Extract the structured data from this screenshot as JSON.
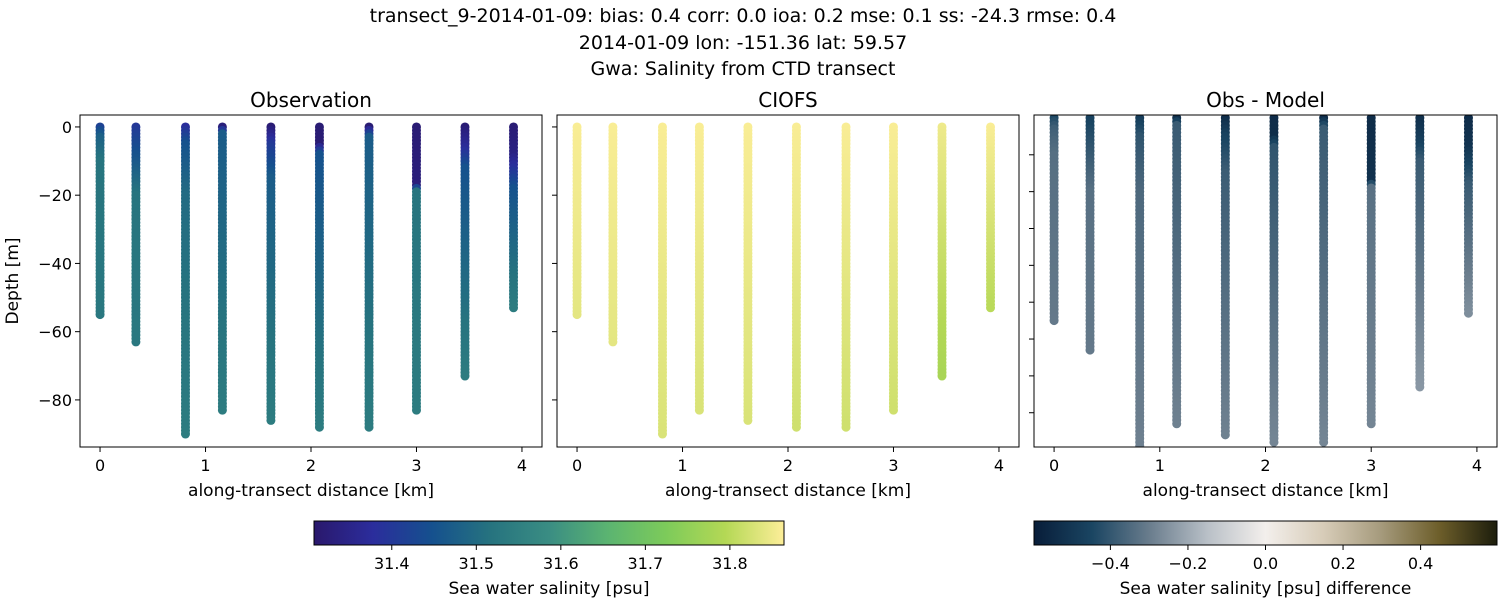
{
  "title_lines": [
    "transect_9-2014-01-09: bias: 0.4  corr: 0.0  ioa: 0.2  mse: 0.1  ss: -24.3  rmse: 0.4",
    "2014-01-09 lon: -151.36 lat: 59.57",
    "Gwa: Salinity from CTD transect"
  ],
  "chart_data": [
    {
      "type": "scatter",
      "title": "Observation",
      "xlabel": "along-transect distance [km]",
      "ylabel": "Depth [m]",
      "xlim": [
        -0.19,
        4.19
      ],
      "ylim": [
        -93.8,
        3.5
      ],
      "xticks": [
        "0",
        "1",
        "2",
        "3",
        "4"
      ],
      "yticks": [
        "0",
        "−20",
        "−40",
        "−60",
        "−80"
      ],
      "color_by": "salinity",
      "colormap": "haline"
    },
    {
      "type": "scatter",
      "title": "CIOFS",
      "xlabel": "along-transect distance [km]",
      "xlim": [
        -0.19,
        4.19
      ],
      "ylim": [
        -93.8,
        3.5
      ],
      "xticks": [
        "0",
        "1",
        "2",
        "3",
        "4"
      ],
      "color_by": "salinity",
      "colormap": "haline"
    },
    {
      "type": "scatter",
      "title": "Obs - Model",
      "xlabel": "along-transect distance [km]",
      "xlim": [
        -0.19,
        4.19
      ],
      "ylim": [
        -89.3,
        0.8
      ],
      "xticks": [
        "0",
        "1",
        "2",
        "3",
        "4"
      ],
      "color_by": "difference",
      "colormap": "diff"
    }
  ],
  "stations": [
    {
      "x": 0.0,
      "max_depth": 55,
      "obs": [
        [
          0,
          31.42
        ],
        [
          3,
          31.48
        ],
        [
          10,
          31.52
        ],
        [
          55,
          31.53
        ]
      ],
      "model": [
        [
          0,
          31.86
        ],
        [
          55,
          31.84
        ]
      ]
    },
    {
      "x": 0.34,
      "max_depth": 63,
      "obs": [
        [
          0,
          31.4
        ],
        [
          8,
          31.45
        ],
        [
          20,
          31.52
        ],
        [
          63,
          31.53
        ]
      ],
      "model": [
        [
          0,
          31.86
        ],
        [
          63,
          31.84
        ]
      ]
    },
    {
      "x": 0.81,
      "max_depth": 90,
      "obs": [
        [
          0,
          31.38
        ],
        [
          5,
          31.45
        ],
        [
          20,
          31.5
        ],
        [
          90,
          31.54
        ]
      ],
      "model": [
        [
          0,
          31.86
        ],
        [
          90,
          31.83
        ]
      ]
    },
    {
      "x": 1.16,
      "max_depth": 83,
      "obs": [
        [
          0,
          31.33
        ],
        [
          2,
          31.47
        ],
        [
          83,
          31.54
        ]
      ],
      "model": [
        [
          0,
          31.86
        ],
        [
          83,
          31.83
        ]
      ]
    },
    {
      "x": 1.62,
      "max_depth": 86,
      "obs": [
        [
          0,
          31.32
        ],
        [
          5,
          31.4
        ],
        [
          15,
          31.47
        ],
        [
          86,
          31.54
        ]
      ],
      "model": [
        [
          0,
          31.86
        ],
        [
          86,
          31.83
        ]
      ]
    },
    {
      "x": 2.08,
      "max_depth": 88,
      "obs": [
        [
          0,
          31.32
        ],
        [
          5,
          31.32
        ],
        [
          8,
          31.45
        ],
        [
          88,
          31.54
        ]
      ],
      "model": [
        [
          0,
          31.86
        ],
        [
          88,
          31.82
        ]
      ]
    },
    {
      "x": 2.55,
      "max_depth": 88,
      "obs": [
        [
          0,
          31.32
        ],
        [
          3,
          31.47
        ],
        [
          88,
          31.54
        ]
      ],
      "model": [
        [
          0,
          31.86
        ],
        [
          88,
          31.82
        ]
      ]
    },
    {
      "x": 3.0,
      "max_depth": 83,
      "obs": [
        [
          0,
          31.32
        ],
        [
          17,
          31.33
        ],
        [
          19,
          31.52
        ],
        [
          83,
          31.54
        ]
      ],
      "model": [
        [
          0,
          31.86
        ],
        [
          83,
          31.82
        ]
      ]
    },
    {
      "x": 3.46,
      "max_depth": 73,
      "obs": [
        [
          0,
          31.32
        ],
        [
          6,
          31.37
        ],
        [
          12,
          31.45
        ],
        [
          73,
          31.54
        ]
      ],
      "model": [
        [
          0,
          31.85
        ],
        [
          73,
          31.78
        ]
      ]
    },
    {
      "x": 3.92,
      "max_depth": 53,
      "obs": [
        [
          0,
          31.32
        ],
        [
          8,
          31.34
        ],
        [
          18,
          31.45
        ],
        [
          53,
          31.54
        ]
      ],
      "model": [
        [
          0,
          31.86
        ],
        [
          53,
          31.8
        ]
      ]
    }
  ],
  "colorbars": [
    {
      "label": "Sea water salinity [psu]",
      "range": [
        31.308,
        31.864
      ],
      "ticks": [
        31.4,
        31.5,
        31.6,
        31.7,
        31.8
      ],
      "tick_labels": [
        "31.4",
        "31.5",
        "31.6",
        "31.7",
        "31.8"
      ],
      "colormap": "haline"
    },
    {
      "label": "Sea water salinity [psu] difference",
      "range": [
        -0.597,
        0.597
      ],
      "ticks": [
        -0.4,
        -0.2,
        0.0,
        0.2,
        0.4
      ],
      "tick_labels": [
        "−0.4",
        "−0.2",
        "0.0",
        "0.2",
        "0.4"
      ],
      "colormap": "diff"
    }
  ],
  "colormaps": {
    "haline": [
      "#2a186c",
      "#2b2d9c",
      "#15508e",
      "#26737f",
      "#3a8d83",
      "#5bb471",
      "#7dcb5a",
      "#b4d855",
      "#fdee99"
    ],
    "diff": [
      "#081d39",
      "#1a4562",
      "#6a7d8d",
      "#b9c0c7",
      "#f3efec",
      "#d7ccb8",
      "#a59a7c",
      "#6d5e2a",
      "#1c1d0c"
    ]
  }
}
